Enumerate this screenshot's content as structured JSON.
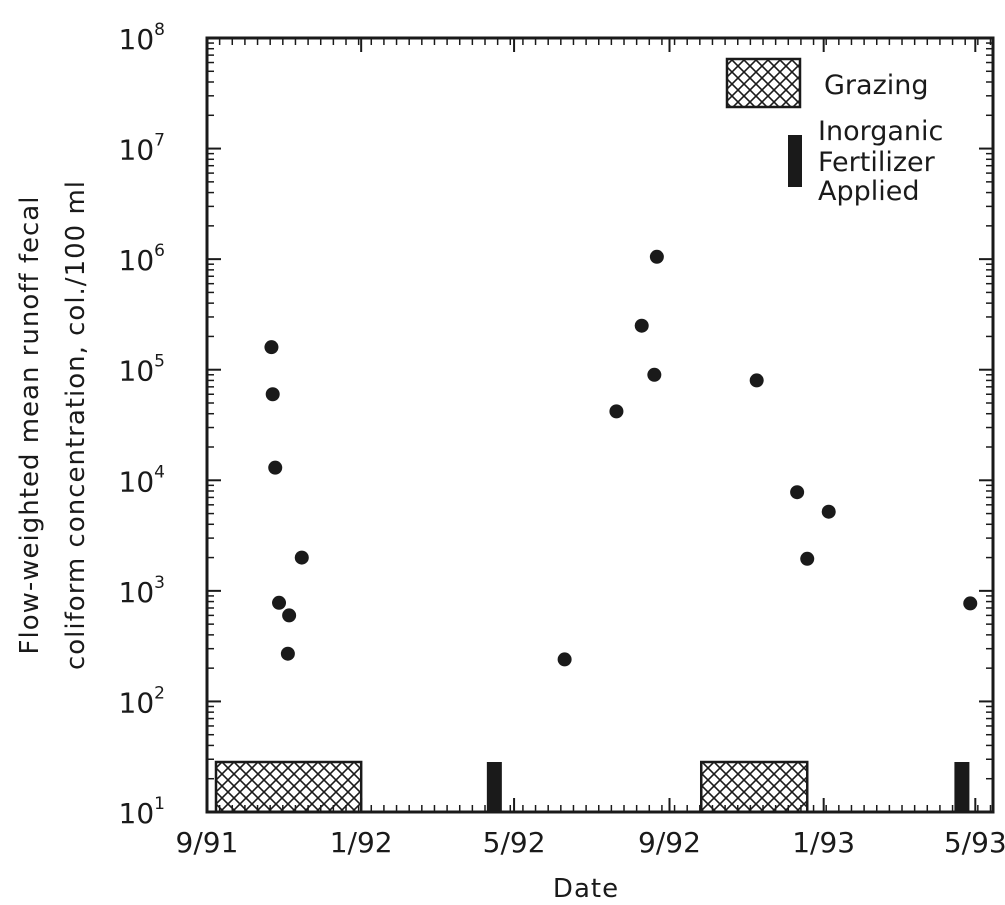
{
  "chart_data": {
    "type": "scatter",
    "title": "",
    "xlabel": "Date",
    "ylabel_line1": "Flow-weighted mean runoff fecal",
    "ylabel_line2": "coliform concentration, col./100 ml",
    "y_scale": "log",
    "ylim": [
      10,
      100000000
    ],
    "y_ticks": [
      {
        "value": 10,
        "base": "10",
        "exp": "1"
      },
      {
        "value": 100,
        "base": "10",
        "exp": "2"
      },
      {
        "value": 1000,
        "base": "10",
        "exp": "3"
      },
      {
        "value": 10000,
        "base": "10",
        "exp": "4"
      },
      {
        "value": 100000,
        "base": "10",
        "exp": "5"
      },
      {
        "value": 1000000,
        "base": "10",
        "exp": "6"
      },
      {
        "value": 10000000,
        "base": "10",
        "exp": "7"
      },
      {
        "value": 100000000,
        "base": "10",
        "exp": "8"
      }
    ],
    "xlim": [
      "1991-09-01",
      "1993-05-15"
    ],
    "x_ticks": [
      {
        "date": "1991-09-01",
        "label": "9/91"
      },
      {
        "date": "1992-01-01",
        "label": "1/92"
      },
      {
        "date": "1992-05-01",
        "label": "5/92"
      },
      {
        "date": "1992-09-01",
        "label": "9/92"
      },
      {
        "date": "1993-01-01",
        "label": "1/93"
      },
      {
        "date": "1993-05-01",
        "label": "5/93"
      }
    ],
    "points": [
      {
        "x": "1991-10-22",
        "y": 160000
      },
      {
        "x": "1991-10-23",
        "y": 60000
      },
      {
        "x": "1991-10-25",
        "y": 13000
      },
      {
        "x": "1991-10-28",
        "y": 780
      },
      {
        "x": "1991-11-04",
        "y": 270
      },
      {
        "x": "1991-11-05",
        "y": 600
      },
      {
        "x": "1991-11-15",
        "y": 2000
      },
      {
        "x": "1992-06-10",
        "y": 240
      },
      {
        "x": "1992-07-21",
        "y": 42000
      },
      {
        "x": "1992-08-10",
        "y": 250000
      },
      {
        "x": "1992-08-20",
        "y": 90000
      },
      {
        "x": "1992-08-22",
        "y": 1050000
      },
      {
        "x": "1992-11-09",
        "y": 80000
      },
      {
        "x": "1992-12-11",
        "y": 7800
      },
      {
        "x": "1992-12-19",
        "y": 1950
      },
      {
        "x": "1993-01-05",
        "y": 5200
      },
      {
        "x": "1993-04-27",
        "y": 770
      }
    ],
    "grazing_periods": [
      {
        "start": "1991-09-01",
        "end": "1992-01-01"
      },
      {
        "start": "1992-09-19",
        "end": "1992-12-19"
      }
    ],
    "fertilizer_dates": [
      "1992-04-15",
      "1993-04-20"
    ],
    "legend": {
      "placement": "top-right",
      "items": [
        {
          "label": "Grazing",
          "swatch": "hatched"
        },
        {
          "label_lines": [
            "Inorganic",
            "Fertilizer",
            "Applied"
          ],
          "swatch": "solid-bar"
        }
      ]
    },
    "colors": {
      "ink": "#1a1a1a",
      "background": "#ffffff"
    }
  }
}
